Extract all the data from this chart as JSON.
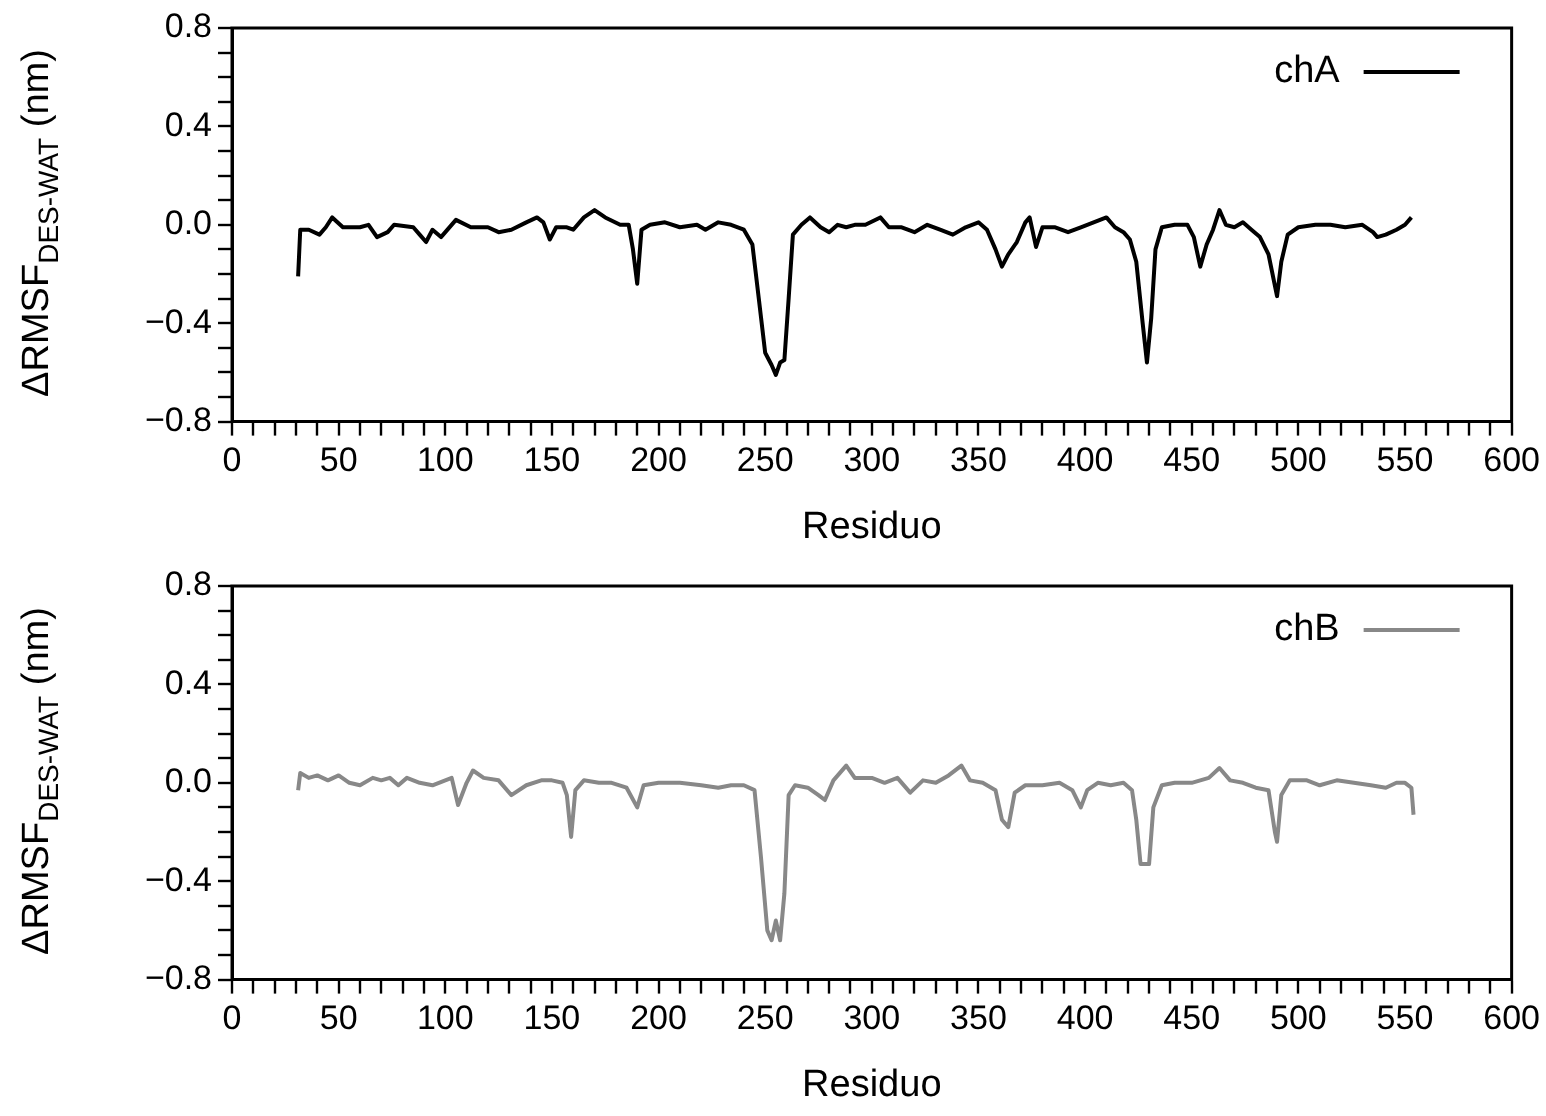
{
  "chart_data": [
    {
      "type": "line",
      "xlabel": "Residuo",
      "ylabel": "ΔRMSF$_{DES-WAT}$ (nm)",
      "legend": "top right",
      "grid": false,
      "marker": "none",
      "line_style": "solid",
      "xlim": [
        0,
        600
      ],
      "ylim": [
        -0.8,
        0.8
      ],
      "xticks": [
        0,
        {
          "value": 10,
          "label": null
        },
        {
          "value": 20,
          "label": null
        },
        {
          "value": 30,
          "label": null
        },
        {
          "value": 40,
          "label": null
        },
        50,
        {
          "value": 60,
          "label": null
        },
        {
          "value": 70,
          "label": null
        },
        {
          "value": 80,
          "label": null
        },
        {
          "value": 90,
          "label": null
        },
        100,
        {
          "value": 110,
          "label": null
        },
        {
          "value": 120,
          "label": null
        },
        {
          "value": 130,
          "label": null
        },
        {
          "value": 140,
          "label": null
        },
        150,
        {
          "value": 160,
          "label": null
        },
        {
          "value": 170,
          "label": null
        },
        {
          "value": 180,
          "label": null
        },
        {
          "value": 190,
          "label": null
        },
        200,
        {
          "value": 210,
          "label": null
        },
        {
          "value": 220,
          "label": null
        },
        {
          "value": 230,
          "label": null
        },
        {
          "value": 240,
          "label": null
        },
        250,
        {
          "value": 260,
          "label": null
        },
        {
          "value": 270,
          "label": null
        },
        {
          "value": 280,
          "label": null
        },
        {
          "value": 290,
          "label": null
        },
        300,
        {
          "value": 310,
          "label": null
        },
        {
          "value": 320,
          "label": null
        },
        {
          "value": 330,
          "label": null
        },
        {
          "value": 340,
          "label": null
        },
        350,
        {
          "value": 360,
          "label": null
        },
        {
          "value": 370,
          "label": null
        },
        {
          "value": 380,
          "label": null
        },
        {
          "value": 390,
          "label": null
        },
        400,
        {
          "value": 410,
          "label": null
        },
        {
          "value": 420,
          "label": null
        },
        {
          "value": 430,
          "label": null
        },
        {
          "value": 440,
          "label": null
        },
        450,
        {
          "value": 460,
          "label": null
        },
        {
          "value": 470,
          "label": null
        },
        {
          "value": 480,
          "label": null
        },
        {
          "value": 490,
          "label": null
        },
        500,
        {
          "value": 510,
          "label": null
        },
        {
          "value": 520,
          "label": null
        },
        {
          "value": 530,
          "label": null
        },
        {
          "value": 540,
          "label": null
        },
        550,
        {
          "value": 560,
          "label": null
        },
        {
          "value": 570,
          "label": null
        },
        {
          "value": 580,
          "label": null
        },
        {
          "value": 590,
          "label": null
        },
        600
      ],
      "yticks": [
        {
          "value": -0.8,
          "label": "−0.8"
        },
        {
          "value": -0.7,
          "label": null
        },
        {
          "value": -0.6,
          "label": null
        },
        {
          "value": -0.5,
          "label": null
        },
        {
          "value": -0.4,
          "label": "−0.4"
        },
        {
          "value": -0.3,
          "label": null
        },
        {
          "value": -0.2,
          "label": null
        },
        {
          "value": -0.1,
          "label": null
        },
        {
          "value": 0,
          "label": "0.0"
        },
        {
          "value": 0.1,
          "label": null
        },
        {
          "value": 0.2,
          "label": null
        },
        {
          "value": 0.3,
          "label": null
        },
        {
          "value": 0.4,
          "label": "0.4"
        },
        {
          "value": 0.5,
          "label": null
        },
        {
          "value": 0.6,
          "label": null
        },
        {
          "value": 0.7,
          "label": null
        },
        {
          "value": 0.8,
          "label": "0.8"
        }
      ],
      "series": [
        {
          "name": "chA",
          "color": "#000000",
          "x": [
            31,
            32,
            36,
            41,
            44,
            47,
            52,
            60,
            64,
            68,
            73,
            76,
            85,
            88,
            91,
            94,
            98,
            105,
            112,
            120,
            125,
            131,
            138,
            143,
            146,
            149,
            152,
            157,
            160,
            165,
            170,
            175,
            182,
            186,
            188,
            190,
            192,
            196,
            203,
            210,
            218,
            222,
            228,
            234,
            240,
            244,
            247,
            250,
            253,
            255,
            257,
            259,
            261,
            263,
            267,
            271,
            276,
            280,
            284,
            288,
            292,
            297,
            304,
            308,
            314,
            320,
            326,
            332,
            338,
            344,
            350,
            354,
            358,
            361,
            364,
            368,
            372,
            374,
            377,
            380,
            386,
            392,
            398,
            404,
            410,
            414,
            418,
            421,
            424,
            427,
            429,
            431,
            433,
            436,
            442,
            448,
            451,
            454,
            457,
            460,
            463,
            466,
            470,
            474,
            478,
            482,
            486,
            490,
            492,
            495,
            500,
            508,
            515,
            522,
            530,
            535,
            537,
            541,
            546,
            550,
            553
          ],
          "values": [
            -0.21,
            -0.02,
            -0.02,
            -0.04,
            -0.01,
            0.03,
            -0.01,
            -0.01,
            0.0,
            -0.05,
            -0.03,
            0.0,
            -0.01,
            -0.04,
            -0.07,
            -0.02,
            -0.05,
            0.02,
            -0.01,
            -0.01,
            -0.03,
            -0.02,
            0.01,
            0.03,
            0.01,
            -0.06,
            -0.01,
            -0.01,
            -0.02,
            0.03,
            0.06,
            0.03,
            0.0,
            0.0,
            -0.1,
            -0.24,
            -0.02,
            0.0,
            0.01,
            -0.01,
            0.0,
            -0.02,
            0.01,
            0.0,
            -0.02,
            -0.08,
            -0.3,
            -0.52,
            -0.57,
            -0.61,
            -0.56,
            -0.55,
            -0.3,
            -0.04,
            0.0,
            0.03,
            -0.01,
            -0.03,
            0.0,
            -0.01,
            0.0,
            0.0,
            0.03,
            -0.01,
            -0.01,
            -0.03,
            0.0,
            -0.02,
            -0.04,
            -0.01,
            0.01,
            -0.02,
            -0.1,
            -0.17,
            -0.12,
            -0.07,
            0.01,
            0.03,
            -0.09,
            -0.01,
            -0.01,
            -0.03,
            -0.01,
            0.01,
            0.03,
            -0.01,
            -0.03,
            -0.06,
            -0.15,
            -0.4,
            -0.56,
            -0.38,
            -0.1,
            -0.01,
            0.0,
            0.0,
            -0.05,
            -0.17,
            -0.08,
            -0.02,
            0.06,
            0.0,
            -0.01,
            0.01,
            -0.02,
            -0.05,
            -0.12,
            -0.29,
            -0.15,
            -0.04,
            -0.01,
            0.0,
            0.0,
            -0.01,
            0.0,
            -0.03,
            -0.05,
            -0.04,
            -0.02,
            0.0,
            0.03
          ]
        }
      ]
    },
    {
      "type": "line",
      "xlabel": "Residuo",
      "ylabel": "ΔRMSF$_{DES-WAT}$ (nm)",
      "legend": "top right",
      "grid": false,
      "marker": "none",
      "line_style": "solid",
      "xlim": [
        0,
        600
      ],
      "ylim": [
        -0.8,
        0.8
      ],
      "xticks": [
        0,
        {
          "value": 10,
          "label": null
        },
        {
          "value": 20,
          "label": null
        },
        {
          "value": 30,
          "label": null
        },
        {
          "value": 40,
          "label": null
        },
        50,
        {
          "value": 60,
          "label": null
        },
        {
          "value": 70,
          "label": null
        },
        {
          "value": 80,
          "label": null
        },
        {
          "value": 90,
          "label": null
        },
        100,
        {
          "value": 110,
          "label": null
        },
        {
          "value": 120,
          "label": null
        },
        {
          "value": 130,
          "label": null
        },
        {
          "value": 140,
          "label": null
        },
        150,
        {
          "value": 160,
          "label": null
        },
        {
          "value": 170,
          "label": null
        },
        {
          "value": 180,
          "label": null
        },
        {
          "value": 190,
          "label": null
        },
        200,
        {
          "value": 210,
          "label": null
        },
        {
          "value": 220,
          "label": null
        },
        {
          "value": 230,
          "label": null
        },
        {
          "value": 240,
          "label": null
        },
        250,
        {
          "value": 260,
          "label": null
        },
        {
          "value": 270,
          "label": null
        },
        {
          "value": 280,
          "label": null
        },
        {
          "value": 290,
          "label": null
        },
        300,
        {
          "value": 310,
          "label": null
        },
        {
          "value": 320,
          "label": null
        },
        {
          "value": 330,
          "label": null
        },
        {
          "value": 340,
          "label": null
        },
        350,
        {
          "value": 360,
          "label": null
        },
        {
          "value": 370,
          "label": null
        },
        {
          "value": 380,
          "label": null
        },
        {
          "value": 390,
          "label": null
        },
        400,
        {
          "value": 410,
          "label": null
        },
        {
          "value": 420,
          "label": null
        },
        {
          "value": 430,
          "label": null
        },
        {
          "value": 440,
          "label": null
        },
        450,
        {
          "value": 460,
          "label": null
        },
        {
          "value": 470,
          "label": null
        },
        {
          "value": 480,
          "label": null
        },
        {
          "value": 490,
          "label": null
        },
        500,
        {
          "value": 510,
          "label": null
        },
        {
          "value": 520,
          "label": null
        },
        {
          "value": 530,
          "label": null
        },
        {
          "value": 540,
          "label": null
        },
        550,
        {
          "value": 560,
          "label": null
        },
        {
          "value": 570,
          "label": null
        },
        {
          "value": 580,
          "label": null
        },
        {
          "value": 590,
          "label": null
        },
        600
      ],
      "yticks": [
        {
          "value": -0.8,
          "label": "−0.8"
        },
        {
          "value": -0.7,
          "label": null
        },
        {
          "value": -0.6,
          "label": null
        },
        {
          "value": -0.5,
          "label": null
        },
        {
          "value": -0.4,
          "label": "−0.4"
        },
        {
          "value": -0.3,
          "label": null
        },
        {
          "value": -0.2,
          "label": null
        },
        {
          "value": -0.1,
          "label": null
        },
        {
          "value": 0,
          "label": "0.0"
        },
        {
          "value": 0.1,
          "label": null
        },
        {
          "value": 0.2,
          "label": null
        },
        {
          "value": 0.3,
          "label": null
        },
        {
          "value": 0.4,
          "label": "0.4"
        },
        {
          "value": 0.5,
          "label": null
        },
        {
          "value": 0.6,
          "label": null
        },
        {
          "value": 0.7,
          "label": null
        },
        {
          "value": 0.8,
          "label": "0.8"
        }
      ],
      "series": [
        {
          "name": "chB",
          "color": "#888888",
          "x": [
            31,
            32,
            36,
            40,
            45,
            50,
            55,
            60,
            66,
            70,
            74,
            78,
            82,
            88,
            94,
            100,
            103,
            106,
            110,
            113,
            118,
            125,
            131,
            138,
            145,
            150,
            155,
            157,
            159,
            161,
            165,
            172,
            178,
            185,
            190,
            193,
            200,
            210,
            220,
            228,
            234,
            240,
            245,
            248,
            251,
            253,
            255,
            257,
            259,
            261,
            264,
            270,
            275,
            278,
            282,
            288,
            292,
            300,
            306,
            312,
            318,
            324,
            330,
            336,
            342,
            346,
            352,
            358,
            361,
            364,
            367,
            372,
            380,
            388,
            394,
            398,
            401,
            406,
            412,
            418,
            422,
            424,
            426,
            430,
            432,
            436,
            442,
            450,
            458,
            463,
            468,
            474,
            480,
            486,
            489,
            490,
            492,
            496,
            504,
            510,
            518,
            526,
            534,
            541,
            546,
            550,
            553,
            554
          ],
          "values": [
            -0.03,
            0.04,
            0.02,
            0.03,
            0.01,
            0.03,
            0.0,
            -0.01,
            0.02,
            0.01,
            0.02,
            -0.01,
            0.02,
            0.0,
            -0.01,
            0.01,
            0.02,
            -0.09,
            0.0,
            0.05,
            0.02,
            0.01,
            -0.05,
            -0.01,
            0.01,
            0.01,
            0.0,
            -0.05,
            -0.22,
            -0.03,
            0.01,
            0.0,
            0.0,
            -0.02,
            -0.1,
            -0.01,
            0.0,
            0.0,
            -0.01,
            -0.02,
            -0.01,
            -0.01,
            -0.03,
            -0.3,
            -0.6,
            -0.64,
            -0.56,
            -0.64,
            -0.45,
            -0.05,
            -0.01,
            -0.02,
            -0.05,
            -0.07,
            0.01,
            0.07,
            0.02,
            0.02,
            0.0,
            0.02,
            -0.04,
            0.01,
            0.0,
            0.03,
            0.07,
            0.01,
            0.0,
            -0.03,
            -0.15,
            -0.18,
            -0.04,
            -0.01,
            -0.01,
            0.0,
            -0.03,
            -0.1,
            -0.03,
            0.0,
            -0.01,
            0.0,
            -0.03,
            -0.15,
            -0.33,
            -0.33,
            -0.1,
            -0.01,
            0.0,
            0.0,
            0.02,
            0.06,
            0.01,
            0.0,
            -0.02,
            -0.03,
            -0.2,
            -0.24,
            -0.05,
            0.01,
            0.01,
            -0.01,
            0.01,
            0.0,
            -0.01,
            -0.02,
            0.0,
            0.0,
            -0.02,
            -0.13
          ]
        }
      ]
    }
  ]
}
